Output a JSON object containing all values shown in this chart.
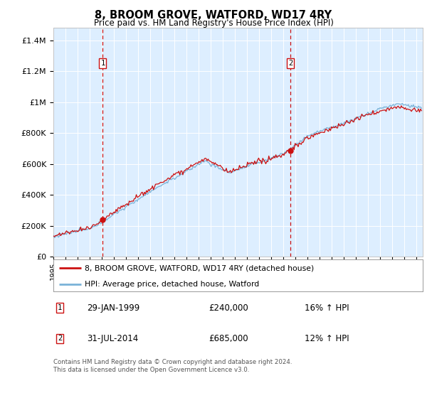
{
  "title": "8, BROOM GROVE, WATFORD, WD17 4RY",
  "subtitle": "Price paid vs. HM Land Registry's House Price Index (HPI)",
  "ylabel_ticks": [
    "£0",
    "£200K",
    "£400K",
    "£600K",
    "£800K",
    "£1M",
    "£1.2M",
    "£1.4M"
  ],
  "ytick_values": [
    0,
    200000,
    400000,
    600000,
    800000,
    1000000,
    1200000,
    1400000
  ],
  "ylim": [
    0,
    1480000
  ],
  "xlim_start": 1995.0,
  "xlim_end": 2025.5,
  "hpi_color": "#7ab3d8",
  "price_color": "#cc1111",
  "bg_color": "#ddeeff",
  "grid_color": "#ffffff",
  "transaction1_date": 1999.08,
  "transaction1_price": 240000,
  "transaction2_date": 2014.58,
  "transaction2_price": 685000,
  "legend_label1": "8, BROOM GROVE, WATFORD, WD17 4RY (detached house)",
  "legend_label2": "HPI: Average price, detached house, Watford",
  "note1_date": "29-JAN-1999",
  "note1_price": "£240,000",
  "note1_hpi": "16% ↑ HPI",
  "note2_date": "31-JUL-2014",
  "note2_price": "£685,000",
  "note2_hpi": "12% ↑ HPI",
  "footer": "Contains HM Land Registry data © Crown copyright and database right 2024.\nThis data is licensed under the Open Government Licence v3.0."
}
